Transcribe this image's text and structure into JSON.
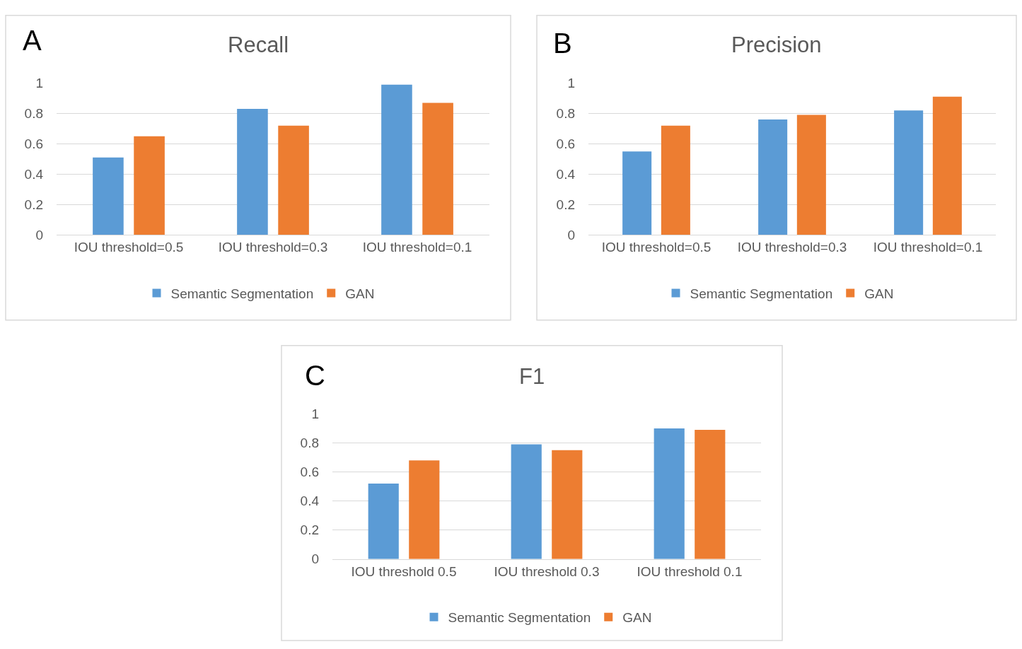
{
  "chart_data": [
    {
      "type": "bar",
      "title": "Recall",
      "annotations": [
        "A"
      ],
      "categories": [
        "IOU threshold=0.5",
        "IOU threshold=0.3",
        "IOU threshold=0.1"
      ],
      "series": [
        {
          "name": "Semantic Segmentation",
          "color": "#5b9bd5",
          "values": [
            0.51,
            0.83,
            0.99
          ]
        },
        {
          "name": "GAN",
          "color": "#ed7d31",
          "values": [
            0.65,
            0.72,
            0.87
          ]
        }
      ],
      "ylim": [
        0,
        1
      ],
      "yticks": [
        0,
        0.2,
        0.4,
        0.6,
        0.8,
        1
      ],
      "grid": "y",
      "legend": "bottom"
    },
    {
      "type": "bar",
      "title": "Precision",
      "annotations": [
        "B"
      ],
      "categories": [
        "IOU threshold=0.5",
        "IOU threshold=0.3",
        "IOU threshold=0.1"
      ],
      "series": [
        {
          "name": "Semantic Segmentation",
          "color": "#5b9bd5",
          "values": [
            0.55,
            0.76,
            0.82
          ]
        },
        {
          "name": "GAN",
          "color": "#ed7d31",
          "values": [
            0.72,
            0.79,
            0.91
          ]
        }
      ],
      "ylim": [
        0,
        1
      ],
      "yticks": [
        0,
        0.2,
        0.4,
        0.6,
        0.8,
        1
      ],
      "grid": "y",
      "legend": "bottom"
    },
    {
      "type": "bar",
      "title": "F1",
      "annotations": [
        "C"
      ],
      "categories": [
        "IOU threshold 0.5",
        "IOU threshold 0.3",
        "IOU threshold 0.1"
      ],
      "series": [
        {
          "name": "Semantic Segmentation",
          "color": "#5b9bd5",
          "values": [
            0.52,
            0.79,
            0.9
          ]
        },
        {
          "name": "GAN",
          "color": "#ed7d31",
          "values": [
            0.68,
            0.75,
            0.89
          ]
        }
      ],
      "ylim": [
        0,
        1
      ],
      "yticks": [
        0,
        0.2,
        0.4,
        0.6,
        0.8,
        1
      ],
      "grid": "y",
      "legend": "bottom"
    }
  ]
}
